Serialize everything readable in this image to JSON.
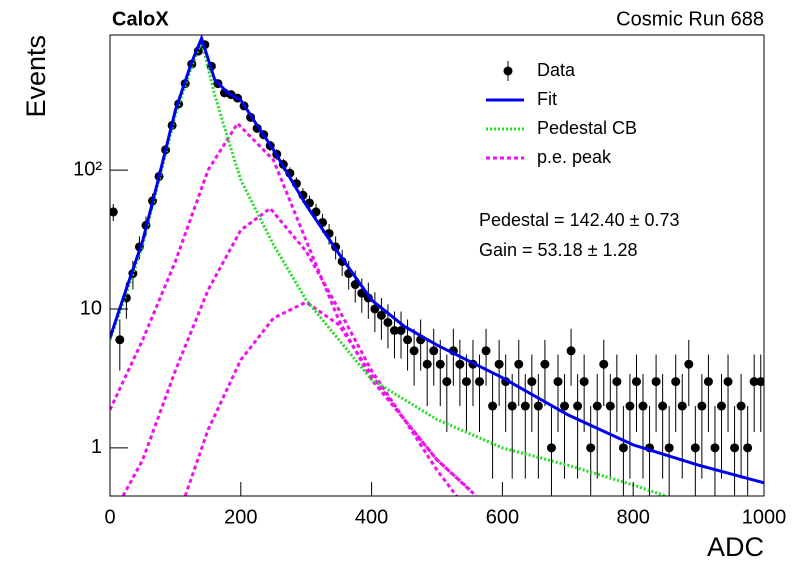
{
  "chart_data": {
    "type": "errorbar",
    "title": "CaloX",
    "subtitle": "Cosmic Run 688",
    "x_label": "ADC",
    "y_label": "Events",
    "annotations": [
      "Pedestal = 142.40 ± 0.73",
      "Gain = 53.18 ± 1.28"
    ],
    "log_y": true,
    "legend": "upper right",
    "xlim": [
      0,
      1000
    ],
    "xticks": [
      0,
      200,
      400,
      600,
      800,
      1000
    ],
    "ylim": [
      0.45,
      940
    ],
    "yticks": [
      1,
      10,
      {
        "value": 100,
        "label": "10²"
      }
    ],
    "data": {
      "name": "Data",
      "color": "#000000",
      "x": [
        5,
        15,
        25,
        35,
        45,
        55,
        65,
        75,
        85,
        95,
        105,
        115,
        125,
        135,
        145,
        155,
        165,
        175,
        185,
        195,
        205,
        215,
        225,
        235,
        245,
        255,
        265,
        275,
        285,
        295,
        305,
        315,
        325,
        335,
        345,
        355,
        365,
        375,
        385,
        395,
        405,
        415,
        425,
        435,
        445,
        455,
        465,
        475,
        485,
        495,
        505,
        515,
        525,
        535,
        545,
        555,
        565,
        575,
        585,
        595,
        605,
        615,
        625,
        635,
        645,
        655,
        665,
        675,
        685,
        695,
        705,
        715,
        725,
        735,
        745,
        755,
        765,
        775,
        785,
        795,
        805,
        815,
        825,
        835,
        845,
        855,
        865,
        875,
        885,
        895,
        905,
        915,
        925,
        935,
        945,
        955,
        965,
        975,
        985,
        995
      ],
      "values": [
        50,
        6,
        12,
        18,
        28,
        40,
        60,
        90,
        140,
        210,
        300,
        420,
        580,
        720,
        800,
        560,
        420,
        360,
        350,
        330,
        290,
        240,
        200,
        180,
        150,
        130,
        110,
        95,
        80,
        66,
        58,
        50,
        42,
        35,
        28,
        22,
        18,
        15,
        13,
        12,
        10,
        9,
        8,
        7,
        7,
        6,
        5,
        6,
        4,
        5,
        4,
        3,
        5,
        4,
        3,
        4,
        3,
        5,
        2,
        4,
        3,
        2,
        4,
        2,
        3,
        2,
        4,
        1,
        3,
        2,
        5,
        2,
        3,
        1,
        2,
        4,
        2,
        3,
        1,
        2,
        3,
        2,
        1,
        3,
        2,
        1,
        3,
        2,
        4,
        1,
        2,
        3,
        1,
        2,
        3,
        1,
        2,
        1,
        3,
        3
      ],
      "errors": [
        7.1,
        2.4,
        3.5,
        4.2,
        5.3,
        6.3,
        7.7,
        9.5,
        11.8,
        14.5,
        17.3,
        20.5,
        24.1,
        26.8,
        28.3,
        23.7,
        20.5,
        19,
        18.7,
        18.2,
        17,
        15.5,
        14.1,
        13.4,
        12.2,
        11.4,
        10.5,
        9.7,
        8.9,
        8.1,
        7.6,
        7.1,
        6.5,
        5.9,
        5.3,
        4.7,
        4.2,
        3.9,
        3.6,
        3.5,
        3.2,
        3,
        2.8,
        2.6,
        2.6,
        2.4,
        2.2,
        2.4,
        2,
        2.2,
        2,
        1.7,
        2.2,
        2,
        1.7,
        2,
        1.7,
        2.2,
        1.4,
        2,
        1.7,
        1.4,
        2,
        1.4,
        1.7,
        1.4,
        2,
        1,
        1.7,
        1.4,
        2.2,
        1.4,
        1.7,
        1,
        1.4,
        2,
        1.4,
        1.7,
        1,
        1.4,
        1.7,
        1.4,
        1,
        1.7,
        1.4,
        1,
        1.7,
        1.4,
        2,
        1,
        1.4,
        1.7,
        1,
        1.4,
        1.7,
        1,
        1.4,
        1,
        1.7,
        1.7
      ]
    },
    "series": [
      {
        "name": "Fit",
        "color": "#0000ee",
        "style": "solid",
        "x": [
          0,
          25,
          50,
          75,
          100,
          125,
          140,
          160,
          180,
          200,
          225,
          250,
          300,
          350,
          400,
          450,
          500,
          600,
          700,
          800,
          900,
          1000
        ],
        "values": [
          6.2,
          14,
          31,
          90,
          270,
          600,
          890,
          450,
          360,
          320,
          210,
          140,
          56,
          25,
          11.6,
          7.5,
          5.5,
          3.2,
          1.73,
          1.05,
          0.75,
          0.56
        ]
      },
      {
        "name": "Pedestal CB",
        "color": "#22dd22",
        "style": "dotted",
        "x": [
          0,
          25,
          50,
          75,
          100,
          125,
          140,
          160,
          180,
          200,
          250,
          300,
          350,
          400,
          500,
          600,
          700,
          800,
          850
        ],
        "values": [
          6,
          13,
          29,
          85,
          250,
          560,
          850,
          350,
          170,
          85,
          29,
          11.6,
          6,
          3.1,
          1.6,
          1.0,
          0.75,
          0.54,
          0.45
        ]
      },
      {
        "name": "p.e. peak",
        "color": "#ee11ee",
        "style": "dashed",
        "x": [
          0,
          50,
          100,
          150,
          195,
          250,
          300,
          350,
          400,
          450,
          500,
          560
        ],
        "values": [
          1.88,
          6,
          22,
          100,
          217,
          118,
          31,
          8.3,
          3.1,
          1.6,
          0.82,
          0.45
        ]
      },
      {
        "color": "#ee11ee",
        "style": "dashed",
        "x": [
          20,
          50,
          100,
          150,
          200,
          245,
          300,
          350,
          400,
          450,
          500,
          550
        ],
        "values": [
          0.45,
          0.82,
          3.6,
          13.7,
          37,
          53,
          26,
          9.9,
          3.6,
          1.6,
          0.82,
          0.5
        ]
      },
      {
        "color": "#ee11ee",
        "style": "dashed",
        "x": [
          115,
          150,
          200,
          250,
          300,
          350,
          400,
          450,
          500,
          530
        ],
        "values": [
          0.45,
          1.35,
          4.3,
          8.6,
          11.2,
          7.7,
          3.35,
          1.6,
          0.69,
          0.45
        ]
      }
    ]
  }
}
